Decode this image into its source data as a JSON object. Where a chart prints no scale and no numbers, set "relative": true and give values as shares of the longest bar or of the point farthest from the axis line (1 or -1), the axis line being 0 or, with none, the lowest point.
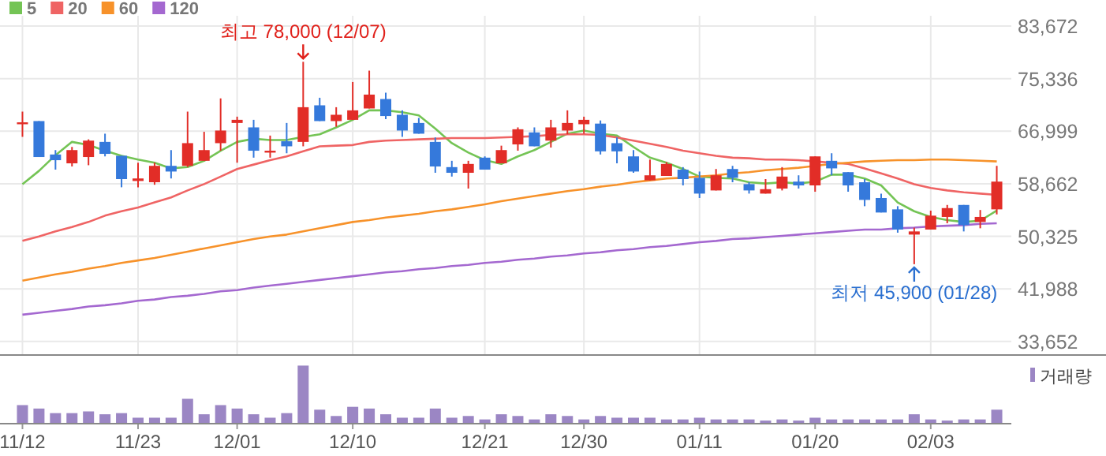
{
  "chart_data": [
    {
      "type": "candlestick",
      "grid": true,
      "legend": "top left",
      "categories": [
        "11/12",
        null,
        null,
        null,
        null,
        null,
        null,
        "11/23",
        null,
        null,
        null,
        null,
        null,
        "12/01",
        null,
        null,
        null,
        null,
        null,
        null,
        "12/10",
        null,
        null,
        null,
        null,
        null,
        null,
        null,
        "12/21",
        null,
        null,
        null,
        null,
        null,
        "12/30",
        null,
        null,
        null,
        null,
        null,
        null,
        "01/11",
        null,
        null,
        null,
        null,
        null,
        null,
        "01/20",
        null,
        null,
        null,
        null,
        null,
        null,
        "02/03",
        null,
        null,
        null,
        null
      ],
      "ohlc": [
        [
          68100,
          70100,
          66100,
          68400
        ],
        [
          68600,
          68600,
          62900,
          62900
        ],
        [
          63300,
          64000,
          60900,
          62400
        ],
        [
          61900,
          64500,
          61400,
          64000
        ],
        [
          62900,
          65700,
          61600,
          65500
        ],
        [
          65300,
          66600,
          63000,
          63400
        ],
        [
          63100,
          63100,
          58100,
          59400
        ],
        [
          59100,
          62000,
          58100,
          59500
        ],
        [
          58900,
          62000,
          58500,
          61500
        ],
        [
          61500,
          64000,
          59500,
          60600
        ],
        [
          61500,
          70100,
          61300,
          65100
        ],
        [
          62300,
          66900,
          62300,
          64000
        ],
        [
          65100,
          72200,
          63900,
          67100
        ],
        [
          68300,
          69300,
          62000,
          68800
        ],
        [
          67600,
          68800,
          62800,
          63900
        ],
        [
          63600,
          66300,
          62800,
          63900
        ],
        [
          65400,
          68300,
          63500,
          64600
        ],
        [
          65300,
          78000,
          64600,
          70800
        ],
        [
          71100,
          72300,
          68600,
          68600
        ],
        [
          68600,
          70800,
          67700,
          69600
        ],
        [
          68800,
          74800,
          68800,
          70300
        ],
        [
          70600,
          76600,
          70600,
          72800
        ],
        [
          72100,
          73100,
          68900,
          69400
        ],
        [
          69600,
          70300,
          66100,
          67100
        ],
        [
          68300,
          69100,
          66600,
          66600
        ],
        [
          65300,
          66000,
          60400,
          61400
        ],
        [
          61300,
          62300,
          59800,
          60400
        ],
        [
          60400,
          62300,
          57900,
          61800
        ],
        [
          62800,
          63000,
          60900,
          60900
        ],
        [
          61900,
          64700,
          61900,
          64000
        ],
        [
          64900,
          67600,
          63900,
          67300
        ],
        [
          66800,
          67600,
          64600,
          64600
        ],
        [
          65500,
          68800,
          64400,
          67600
        ],
        [
          67100,
          70300,
          66500,
          68300
        ],
        [
          68100,
          69300,
          66600,
          68800
        ],
        [
          68200,
          68700,
          63300,
          63800
        ],
        [
          65100,
          66000,
          61900,
          63800
        ],
        [
          63000,
          64000,
          60400,
          60600
        ],
        [
          59200,
          62500,
          59200,
          60000
        ],
        [
          59900,
          62100,
          59900,
          61800
        ],
        [
          60900,
          61300,
          58400,
          59400
        ],
        [
          59600,
          60600,
          56400,
          57100
        ],
        [
          57600,
          61000,
          57600,
          60000
        ],
        [
          61000,
          61500,
          58900,
          59600
        ],
        [
          58600,
          58900,
          57100,
          57600
        ],
        [
          57100,
          59400,
          57100,
          57800
        ],
        [
          57900,
          61300,
          57600,
          59800
        ],
        [
          59000,
          60000,
          57900,
          58400
        ],
        [
          58400,
          63000,
          57400,
          63000
        ],
        [
          62300,
          63500,
          60000,
          61100
        ],
        [
          60500,
          60500,
          57400,
          58400
        ],
        [
          58900,
          59400,
          55100,
          56100
        ],
        [
          56400,
          57100,
          54100,
          54100
        ],
        [
          54600,
          55100,
          50900,
          51400
        ],
        [
          50600,
          51700,
          45900,
          51100
        ],
        [
          51400,
          54400,
          51400,
          53600
        ],
        [
          53400,
          55300,
          52400,
          54800
        ],
        [
          55300,
          55300,
          51100,
          52100
        ],
        [
          52600,
          54500,
          51600,
          53400
        ],
        [
          54600,
          61500,
          53800,
          59000
        ]
      ],
      "colors": [
        "#e22d27",
        "#3579db",
        "#3579db",
        "#e22d27",
        "#e22d27",
        "#3579db",
        "#3579db",
        "#e22d27",
        "#e22d27",
        "#3579db",
        "#e22d27",
        "#e22d27",
        "#e22d27",
        "#e22d27",
        "#3579db",
        "#e22d27",
        "#3579db",
        "#e22d27",
        "#3579db",
        "#e22d27",
        "#e22d27",
        "#e22d27",
        "#3579db",
        "#3579db",
        "#3579db",
        "#3579db",
        "#3579db",
        "#e22d27",
        "#3579db",
        "#e22d27",
        "#e22d27",
        "#3579db",
        "#e22d27",
        "#e22d27",
        "#e22d27",
        "#3579db",
        "#3579db",
        "#3579db",
        "#e22d27",
        "#e22d27",
        "#3579db",
        "#3579db",
        "#e22d27",
        "#3579db",
        "#3579db",
        "#e22d27",
        "#e22d27",
        "#3579db",
        "#e22d27",
        "#3579db",
        "#3579db",
        "#3579db",
        "#3579db",
        "#3579db",
        "#e22d27",
        "#e22d27",
        "#e22d27",
        "#3579db",
        "#e22d27",
        "#e22d27"
      ],
      "series": [
        {
          "type": "line",
          "name": "5",
          "color": "#74c455",
          "values": [
            58600,
            60700,
            63200,
            65300,
            64800,
            63900,
            63100,
            62500,
            62000,
            61100,
            61300,
            62300,
            63900,
            65300,
            65800,
            65600,
            65600,
            66100,
            66500,
            67600,
            68800,
            70300,
            70300,
            70000,
            69500,
            67400,
            65100,
            63600,
            62400,
            61800,
            63000,
            64000,
            65300,
            66600,
            67100,
            66600,
            66300,
            64500,
            62800,
            62000,
            61000,
            59800,
            59600,
            59500,
            58900,
            58700,
            58900,
            58700,
            59000,
            60100,
            60100,
            59500,
            58400,
            55700,
            54300,
            53400,
            52900,
            52600,
            52800,
            54400
          ]
        },
        {
          "type": "line",
          "name": "20",
          "color": "#ef6464",
          "values": [
            49600,
            50300,
            51100,
            51800,
            52600,
            53600,
            54300,
            54900,
            55700,
            56500,
            57600,
            58600,
            59800,
            61000,
            61700,
            62400,
            63000,
            63800,
            64600,
            64700,
            64800,
            65300,
            65500,
            65600,
            65700,
            65800,
            65900,
            65900,
            65900,
            66000,
            66100,
            66200,
            66400,
            66500,
            66500,
            66400,
            66000,
            65500,
            65000,
            64500,
            63900,
            63500,
            63100,
            62800,
            62700,
            62500,
            62500,
            62400,
            62200,
            62000,
            61800,
            61100,
            60300,
            59500,
            58600,
            58000,
            57600,
            57300,
            57100,
            56900
          ]
        },
        {
          "type": "line",
          "name": "60",
          "color": "#f7922a",
          "values": [
            43300,
            43800,
            44300,
            44700,
            45200,
            45600,
            46100,
            46500,
            46900,
            47400,
            47900,
            48400,
            48900,
            49400,
            49900,
            50300,
            50600,
            51100,
            51600,
            52100,
            52600,
            52900,
            53300,
            53600,
            53900,
            54300,
            54600,
            55000,
            55400,
            55900,
            56300,
            56700,
            57100,
            57500,
            57800,
            58200,
            58500,
            58900,
            59200,
            59500,
            59600,
            59800,
            60000,
            60300,
            60500,
            60800,
            61000,
            61200,
            61500,
            61800,
            62000,
            62200,
            62300,
            62400,
            62400,
            62500,
            62500,
            62400,
            62300,
            62200
          ]
        },
        {
          "type": "line",
          "name": "120",
          "color": "#a468d0",
          "values": [
            37900,
            38200,
            38500,
            38800,
            39200,
            39400,
            39700,
            40100,
            40300,
            40700,
            40900,
            41200,
            41600,
            41800,
            42200,
            42500,
            42800,
            43100,
            43400,
            43700,
            44000,
            44300,
            44600,
            44800,
            45100,
            45300,
            45600,
            45800,
            46100,
            46300,
            46600,
            46800,
            47100,
            47300,
            47600,
            47800,
            48100,
            48300,
            48600,
            48800,
            49100,
            49400,
            49600,
            49900,
            50000,
            50200,
            50400,
            50600,
            50800,
            51000,
            51200,
            51400,
            51400,
            51600,
            51700,
            51900,
            52000,
            52100,
            52300,
            52400
          ]
        }
      ],
      "ylim": [
        31500,
        85300
      ],
      "yticks": [
        {
          "value": 83672,
          "label": "83,672"
        },
        {
          "value": 75336,
          "label": "75,336"
        },
        {
          "value": 66999,
          "label": "66,999"
        },
        {
          "value": 58662,
          "label": "58,662"
        },
        {
          "value": 50325,
          "label": "50,325"
        },
        {
          "value": 41988,
          "label": "41,988"
        },
        {
          "value": 33652,
          "label": "33,652"
        }
      ],
      "annotations": [
        {
          "text": "최고 78,000 (12/07)",
          "y": 78000
        },
        {
          "text": "최저 45,900 (01/28)",
          "y": 45900
        }
      ]
    },
    {
      "type": "bar",
      "relative": true,
      "legend": "top right",
      "categories": [
        null,
        null,
        null,
        null,
        null,
        null,
        null,
        null,
        null,
        null,
        null,
        null,
        null,
        null,
        null,
        null,
        null,
        null,
        null,
        null,
        null,
        null,
        null,
        null,
        null,
        null,
        null,
        null,
        null,
        null,
        null,
        null,
        null,
        null,
        null,
        null,
        null,
        null,
        null,
        null,
        null,
        null,
        null,
        null,
        null,
        null,
        null,
        null,
        null,
        null,
        null,
        null,
        null,
        null,
        null,
        null,
        null,
        null,
        null,
        null
      ],
      "series": [
        {
          "name": "거래량",
          "color": "#9b86c4",
          "values": [
            0.31,
            0.25,
            0.17,
            0.17,
            0.2,
            0.15,
            0.17,
            0.09,
            0.09,
            0.09,
            0.42,
            0.15,
            0.31,
            0.25,
            0.15,
            0.09,
            0.17,
            1,
            0.23,
            0.12,
            0.28,
            0.25,
            0.15,
            0.09,
            0.09,
            0.25,
            0.09,
            0.12,
            0.06,
            0.15,
            0.12,
            0.06,
            0.15,
            0.12,
            0.06,
            0.12,
            0.09,
            0.09,
            0.09,
            0.06,
            0.06,
            0.09,
            0.06,
            0.06,
            0.06,
            0.04,
            0.06,
            0.04,
            0.09,
            0.06,
            0.06,
            0.06,
            0.06,
            0.06,
            0.15,
            0.06,
            0.04,
            0.06,
            0.06,
            0.23
          ]
        }
      ]
    }
  ]
}
